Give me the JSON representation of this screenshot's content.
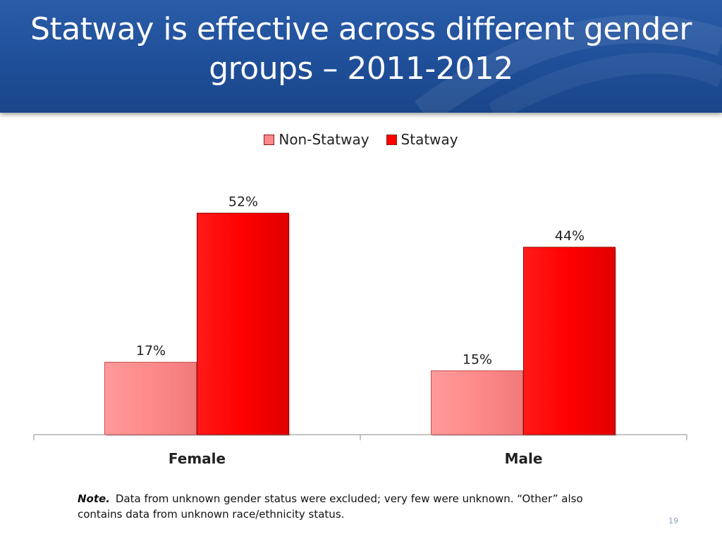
{
  "slide": {
    "title": "Statway is effective across different gender groups – 2011-2012",
    "note_label": "Note.",
    "note_text": "Data from unknown gender status were excluded; very few were unknown. “Other” also contains data from unknown race/ethnicity status.",
    "page_number": "19"
  },
  "colors": {
    "header": "#1f4f99",
    "non_statway": "#ff8a8a",
    "statway": "#ff0000"
  },
  "chart_data": {
    "type": "bar",
    "categories": [
      "Female",
      "Male"
    ],
    "series": [
      {
        "name": "Non-Statway",
        "values": [
          17,
          15
        ],
        "labels": [
          "17%",
          "15%"
        ]
      },
      {
        "name": "Statway",
        "values": [
          52,
          44
        ],
        "labels": [
          "52%",
          "44%"
        ]
      }
    ],
    "ylim": [
      0,
      64
    ],
    "legend": "top-center",
    "grid": false,
    "unit": "%"
  }
}
